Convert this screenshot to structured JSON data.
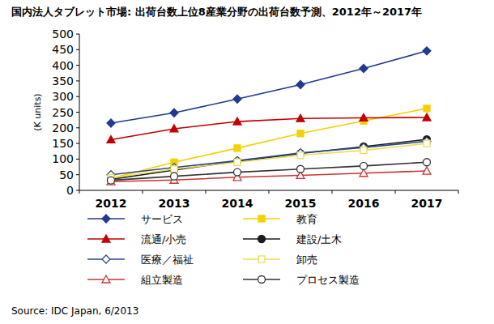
{
  "chart_data": {
    "type": "line",
    "title": "国内法人タブレット市場: 出荷台数上位8産業分野の出荷台数予測、2012年～2017年",
    "y_label": "(K units)",
    "source": "Source: IDC Japan, 6/2013",
    "categories": [
      "2012",
      "2013",
      "2014",
      "2015",
      "2016",
      "2017"
    ],
    "ylim": [
      0,
      500
    ],
    "yticks": [
      0,
      50,
      100,
      150,
      200,
      250,
      300,
      350,
      400,
      450,
      500
    ],
    "grid": false,
    "legend": "bottom",
    "series": [
      {
        "name": "サービス",
        "color": "#1f3a8f",
        "marker": "diamond",
        "values": [
          215,
          248,
          292,
          338,
          390,
          446
        ]
      },
      {
        "name": "教育",
        "color": "#f5d000",
        "marker": "square",
        "values": [
          38,
          90,
          135,
          182,
          222,
          262
        ]
      },
      {
        "name": "流通/小売",
        "color": "#c00000",
        "marker": "triangle",
        "values": [
          162,
          197,
          220,
          230,
          232,
          233
        ]
      },
      {
        "name": "建設/土木",
        "color": "#1a1a1a",
        "marker": "circle",
        "values": [
          35,
          65,
          93,
          118,
          140,
          163
        ]
      },
      {
        "name": "医療／福祉",
        "color": "#2e4a8a",
        "marker": "open-diamond",
        "values": [
          50,
          73,
          95,
          120,
          137,
          157
        ]
      },
      {
        "name": "卸売",
        "color": "#eedc50",
        "marker": "open-square",
        "values": [
          40,
          68,
          90,
          112,
          128,
          150
        ]
      },
      {
        "name": "組立製造",
        "color": "#cc3333",
        "marker": "open-triangle",
        "values": [
          28,
          33,
          42,
          48,
          55,
          62
        ]
      },
      {
        "name": "プロセス製造",
        "color": "#333333",
        "marker": "open-circle",
        "values": [
          32,
          45,
          58,
          68,
          78,
          90
        ]
      }
    ]
  }
}
